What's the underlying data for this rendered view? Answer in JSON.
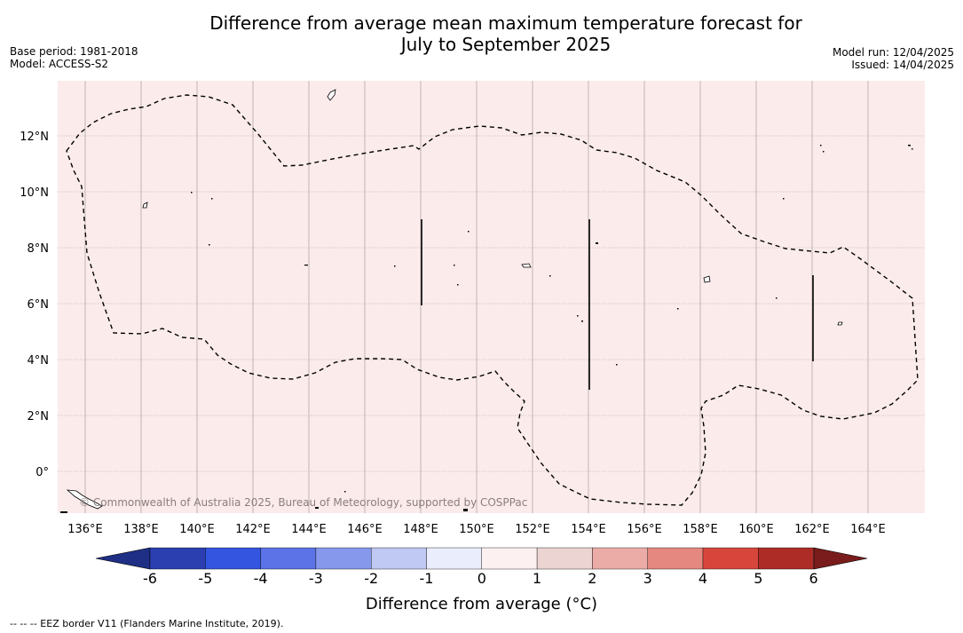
{
  "header": {
    "title_line1": "Difference from average mean maximum temperature forecast for",
    "title_line2": "July to September 2025",
    "base_period": "Base period: 1981-2018",
    "model": "Model: ACCESS-S2",
    "model_run": "Model run: 12/04/2025",
    "issued": "Issued: 14/04/2025"
  },
  "map": {
    "background_color": "#fcebeb",
    "lon_ticks": [
      "136°E",
      "138°E",
      "140°E",
      "142°E",
      "144°E",
      "146°E",
      "148°E",
      "150°E",
      "152°E",
      "154°E",
      "156°E",
      "158°E",
      "160°E",
      "162°E",
      "164°E"
    ],
    "lat_ticks": [
      "12°N",
      "10°N",
      "8°N",
      "6°N",
      "4°N",
      "2°N",
      "0°"
    ],
    "copyright": "© Commonwealth of Australia 2025, Bureau of Meteorology, supported by COSPPac"
  },
  "colorbar": {
    "ticks": [
      "-6",
      "-5",
      "-4",
      "-3",
      "-2",
      "-1",
      "0",
      "1",
      "2",
      "3",
      "4",
      "5",
      "6"
    ],
    "colors": [
      "#1f2f85",
      "#2b3fb0",
      "#3355e0",
      "#5b73e6",
      "#8598eb",
      "#c0c8f4",
      "#eaedfb",
      "#fdf0f0",
      "#ebd4d2",
      "#ebaca8",
      "#e58880",
      "#d8463b",
      "#ad2c26",
      "#7a1c1c"
    ],
    "title": "Difference from average (°C)"
  },
  "footnote": "--  --  -- EEZ border V11 (Flanders Marine Institute, 2019)."
}
